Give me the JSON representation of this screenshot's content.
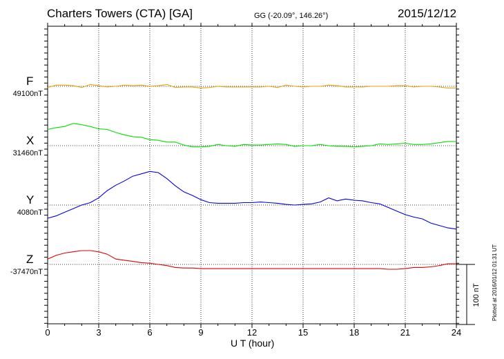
{
  "header": {
    "title": "Charters Towers (CTA)  [GA]",
    "coords": "GG (-20.09°, 146.26°)",
    "date": "2015/12/12"
  },
  "plotted_note": "Plotted at 2016/01/12 01:31  UT",
  "scale_label": "100 nT",
  "chart_data": {
    "type": "line",
    "xlabel": "U T (hour)",
    "xlim": [
      0,
      24
    ],
    "xticks": [
      "0",
      "3",
      "6",
      "9",
      "12",
      "15",
      "18",
      "21",
      "24"
    ],
    "grid": true,
    "scale_bar_nT": 100,
    "series": [
      {
        "name": "F",
        "baseline_label": "49100nT",
        "color": "#f0a000",
        "x": [
          0,
          0.5,
          1,
          1.5,
          2,
          2.5,
          3,
          3.5,
          4,
          4.5,
          5,
          5.5,
          6,
          6.5,
          7,
          7.5,
          8,
          8.5,
          9,
          9.5,
          10,
          10.5,
          11,
          11.5,
          12,
          12.5,
          13,
          13.5,
          14,
          14.5,
          15,
          15.5,
          16,
          16.5,
          17,
          17.5,
          18,
          18.5,
          19,
          19.5,
          20,
          20.5,
          21,
          21.5,
          22,
          22.5,
          23,
          23.5,
          24
        ],
        "y": [
          -2,
          2,
          2,
          1,
          -2,
          3,
          1,
          -1,
          0,
          2,
          1,
          2,
          0,
          1,
          3,
          -2,
          -1,
          -1,
          -3,
          -2,
          0,
          -1,
          -1,
          -1,
          -1,
          -1,
          0,
          -2,
          2,
          0,
          -1,
          0,
          0,
          2,
          1,
          -1,
          -1,
          -1,
          0,
          0,
          0,
          1,
          1,
          -1,
          0,
          0,
          -1,
          -3,
          -3
        ]
      },
      {
        "name": "X",
        "baseline_label": "31460nT",
        "color": "#00e000",
        "x": [
          0,
          0.5,
          1,
          1.5,
          2,
          2.5,
          3,
          3.5,
          4,
          4.5,
          5,
          5.5,
          6,
          6.5,
          7,
          7.5,
          8,
          8.5,
          9,
          9.5,
          10,
          10.5,
          11,
          11.5,
          12,
          12.5,
          13,
          13.5,
          14,
          14.5,
          15,
          15.5,
          16,
          16.5,
          17,
          17.5,
          18,
          18.5,
          19,
          19.5,
          20,
          20.5,
          21,
          21.5,
          22,
          22.5,
          23,
          23.5,
          24
        ],
        "y": [
          27,
          30,
          32,
          37,
          35,
          32,
          28,
          27,
          22,
          18,
          15,
          14,
          10,
          9,
          6,
          6,
          1,
          -2,
          -2,
          -1,
          2,
          0,
          -1,
          2,
          1,
          1,
          2,
          3,
          2,
          -1,
          0,
          0,
          2,
          0,
          -1,
          -1,
          -2,
          -1,
          0,
          3,
          2,
          3,
          4,
          2,
          2,
          3,
          5,
          7,
          7
        ]
      },
      {
        "name": "Y",
        "baseline_label": "4080nT",
        "color": "#0000e0",
        "x": [
          0,
          0.5,
          1,
          1.5,
          2,
          2.5,
          3,
          3.5,
          4,
          4.5,
          5,
          5.5,
          6,
          6.5,
          7,
          7.5,
          8,
          8.5,
          9,
          9.5,
          10,
          10.5,
          11,
          11.5,
          12,
          12.5,
          13,
          13.5,
          14,
          14.5,
          15,
          15.5,
          16,
          16.5,
          17,
          17.5,
          18,
          18.5,
          19,
          19.5,
          20,
          20.5,
          21,
          21.5,
          22,
          22.5,
          23,
          23.5,
          24
        ],
        "y": [
          -22,
          -18,
          -12,
          -6,
          0,
          4,
          12,
          24,
          33,
          40,
          48,
          52,
          56,
          54,
          44,
          32,
          22,
          16,
          9,
          4,
          3,
          3,
          3,
          4,
          4,
          5,
          4,
          3,
          1,
          0,
          1,
          2,
          5,
          12,
          7,
          10,
          8,
          7,
          4,
          2,
          -4,
          -10,
          -16,
          -20,
          -23,
          -30,
          -34,
          -38,
          -40
        ]
      },
      {
        "name": "Z",
        "baseline_label": "-37470nT",
        "color": "#e00000",
        "x": [
          0,
          0.5,
          1,
          1.5,
          2,
          2.5,
          3,
          3.5,
          4,
          4.5,
          5,
          5.5,
          6,
          6.5,
          7,
          7.5,
          8,
          8.5,
          9,
          9.5,
          10,
          10.5,
          11,
          11.5,
          12,
          12.5,
          13,
          13.5,
          14,
          14.5,
          15,
          15.5,
          16,
          16.5,
          17,
          17.5,
          18,
          18.5,
          19,
          19.5,
          20,
          20.5,
          21,
          21.5,
          22,
          22.5,
          23,
          23.5,
          24
        ],
        "y": [
          9,
          15,
          19,
          21,
          23,
          23,
          21,
          17,
          9,
          7,
          5,
          3,
          2,
          0,
          -2,
          -5,
          -6,
          -6,
          -7,
          -7,
          -7,
          -7,
          -7,
          -7,
          -7,
          -7,
          -7,
          -7,
          -7,
          -7,
          -7,
          -7,
          -7,
          -7,
          -7,
          -7,
          -7,
          -7,
          -7,
          -7,
          -8,
          -8,
          -7,
          -5,
          -5,
          -4,
          -2,
          1,
          1
        ]
      }
    ]
  }
}
